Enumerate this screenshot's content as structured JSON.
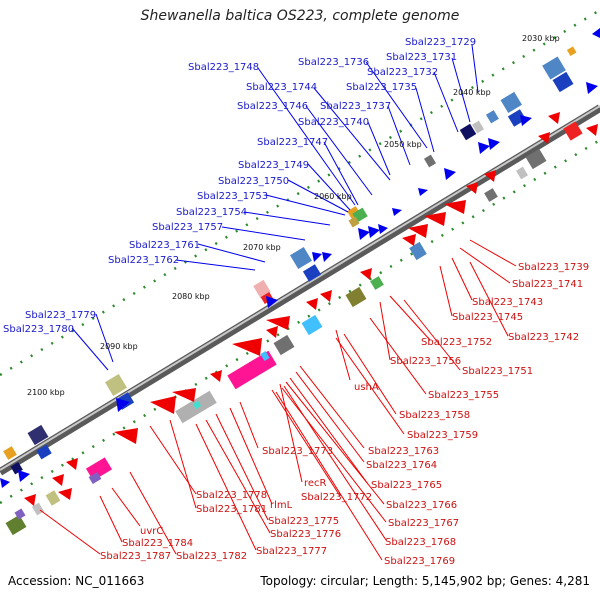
{
  "title": "Shewanella baltica OS223, complete genome",
  "footer": {
    "accession": "Accession: NC_011663",
    "summary": "Topology: circular; Length: 5,145,902 bp; Genes: 4,281"
  },
  "colors": {
    "forward_arrow": "#0000ee",
    "reverse_arrow": "#ee0000",
    "leader_blue": "#0000ee",
    "leader_red": "#ee0000",
    "backbone": "#808080",
    "tick": "#2e8b2e"
  },
  "kbp_labels": [
    "2030 kbp",
    "2040 kbp",
    "2050 kbp",
    "2060 kbp",
    "2070 kbp",
    "2080 kbp",
    "2090 kbp",
    "2100 kbp"
  ],
  "blue_labels": [
    "Sbal223_1729",
    "Sbal223_1731",
    "Sbal223_1748",
    "Sbal223_1736",
    "Sbal223_1732",
    "Sbal223_1744",
    "Sbal223_1735",
    "Sbal223_1746",
    "Sbal223_1737",
    "Sbal223_1740",
    "Sbal223_1747",
    "Sbal223_1749",
    "Sbal223_1750",
    "Sbal223_1753",
    "Sbal223_1754",
    "Sbal223_1757",
    "Sbal223_1761",
    "Sbal223_1762",
    "Sbal223_1779",
    "Sbal223_1780"
  ],
  "red_labels": [
    "Sbal223_1739",
    "Sbal223_1741",
    "Sbal223_1743",
    "Sbal223_1745",
    "Sbal223_1742",
    "Sbal223_1752",
    "Sbal223_1756",
    "Sbal223_1751",
    "ushA",
    "Sbal223_1755",
    "Sbal223_1758",
    "Sbal223_1759",
    "Sbal223_1763",
    "Sbal223_1773",
    "Sbal223_1764",
    "recR",
    "Sbal223_1765",
    "Sbal223_1772",
    "Sbal223_1778",
    "Sbal223_1766",
    "Sbal223_1781",
    "rlmL",
    "Sbal223_1767",
    "Sbal223_1775",
    "uvrC",
    "Sbal223_1776",
    "Sbal223_1768",
    "Sbal223_1784",
    "Sbal223_1777",
    "Sbal223_1787",
    "Sbal223_1782",
    "Sbal223_1769"
  ]
}
